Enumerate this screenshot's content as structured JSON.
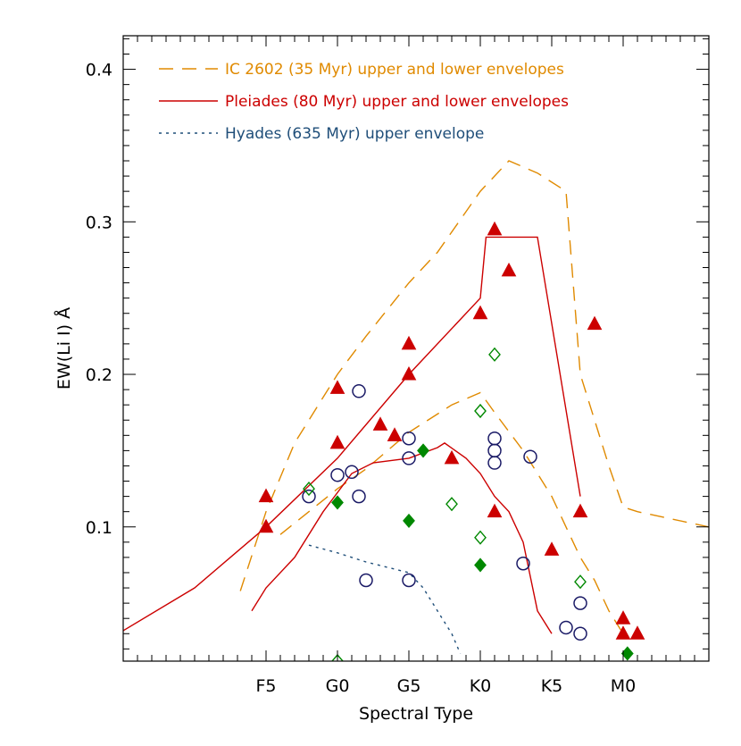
{
  "colors": {
    "ic2602": "#e08a00",
    "pleiades": "#cc0000",
    "hyades": "#1f4e79",
    "axis": "#000000",
    "circles": "#1a1a66",
    "diamonds": "#008800"
  },
  "chart_data": {
    "type": "scatter",
    "xlabel": "Spectral Type",
    "ylabel": "EW(Li I) Å",
    "xlim": [
      -5,
      36
    ],
    "ylim": [
      0.012,
      0.422
    ],
    "x_ticks": [
      {
        "value": 5,
        "label": "F5"
      },
      {
        "value": 10,
        "label": "G0"
      },
      {
        "value": 15,
        "label": "G5"
      },
      {
        "value": 20,
        "label": "K0"
      },
      {
        "value": 25,
        "label": "K5"
      },
      {
        "value": 30,
        "label": "M0"
      }
    ],
    "y_ticks": [
      {
        "value": 0.1,
        "label": "0.1"
      },
      {
        "value": 0.2,
        "label": "0.2"
      },
      {
        "value": 0.3,
        "label": "0.3"
      },
      {
        "value": 0.4,
        "label": "0.4"
      }
    ],
    "grid": false,
    "legend_position": "top-left",
    "legend": [
      {
        "label": "IC 2602 (35 Myr) upper and lower envelopes",
        "style": "dashed",
        "color": "#e08a00"
      },
      {
        "label": "Pleiades (80 Myr) upper and lower envelopes",
        "style": "solid",
        "color": "#cc0000"
      },
      {
        "label": "Hyades (635 Myr) upper envelope",
        "style": "dotted",
        "color": "#1f4e79"
      }
    ],
    "lines": [
      {
        "id": "ic2602-upper",
        "style": "dashed",
        "color": "#e08a00",
        "points": [
          [
            3.2,
            0.058
          ],
          [
            5,
            0.11
          ],
          [
            7,
            0.155
          ],
          [
            10,
            0.2
          ],
          [
            12,
            0.225
          ],
          [
            15,
            0.26
          ],
          [
            17,
            0.28
          ],
          [
            20,
            0.32
          ],
          [
            22,
            0.34
          ],
          [
            24,
            0.332
          ],
          [
            26,
            0.32
          ],
          [
            27,
            0.2
          ],
          [
            28,
            0.17
          ],
          [
            29,
            0.14
          ],
          [
            30,
            0.113
          ],
          [
            31,
            0.11
          ],
          [
            36,
            0.1
          ]
        ]
      },
      {
        "id": "ic2602-lower",
        "style": "dashed",
        "color": "#e08a00",
        "points": [
          [
            6,
            0.095
          ],
          [
            8,
            0.11
          ],
          [
            10,
            0.125
          ],
          [
            12,
            0.138
          ],
          [
            15,
            0.162
          ],
          [
            18,
            0.18
          ],
          [
            20,
            0.188
          ],
          [
            21,
            0.175
          ],
          [
            23,
            0.15
          ],
          [
            25,
            0.12
          ],
          [
            26,
            0.1
          ],
          [
            27,
            0.08
          ],
          [
            28,
            0.065
          ],
          [
            29,
            0.045
          ],
          [
            30,
            0.03
          ]
        ]
      },
      {
        "id": "pleiades-upper",
        "style": "solid",
        "color": "#cc0000",
        "points": [
          [
            -5,
            0.032
          ],
          [
            0,
            0.06
          ],
          [
            5,
            0.1
          ],
          [
            10,
            0.145
          ],
          [
            15,
            0.2
          ],
          [
            20,
            0.25
          ],
          [
            20.4,
            0.29
          ],
          [
            24,
            0.29
          ],
          [
            27,
            0.12
          ]
        ]
      },
      {
        "id": "pleiades-lower",
        "style": "solid",
        "color": "#cc0000",
        "points": [
          [
            4,
            0.045
          ],
          [
            5,
            0.06
          ],
          [
            7,
            0.08
          ],
          [
            9,
            0.11
          ],
          [
            11,
            0.135
          ],
          [
            12.5,
            0.142
          ],
          [
            15,
            0.145
          ],
          [
            17,
            0.152
          ],
          [
            17.5,
            0.155
          ],
          [
            19,
            0.145
          ],
          [
            20,
            0.135
          ],
          [
            21,
            0.12
          ],
          [
            22,
            0.11
          ],
          [
            23,
            0.09
          ],
          [
            24,
            0.045
          ],
          [
            25,
            0.03
          ]
        ]
      },
      {
        "id": "hyades-upper",
        "style": "dotted",
        "color": "#1f4e79",
        "points": [
          [
            8,
            0.088
          ],
          [
            10,
            0.083
          ],
          [
            12,
            0.077
          ],
          [
            15,
            0.07
          ],
          [
            16,
            0.06
          ],
          [
            17,
            0.045
          ],
          [
            18,
            0.03
          ],
          [
            18.6,
            0.017
          ]
        ]
      }
    ],
    "series": [
      {
        "marker": "filled-triangle",
        "color": "#cc0000",
        "points": [
          [
            5,
            0.12
          ],
          [
            5,
            0.1
          ],
          [
            10,
            0.191
          ],
          [
            10,
            0.155
          ],
          [
            15,
            0.22
          ],
          [
            15,
            0.2
          ],
          [
            13,
            0.167
          ],
          [
            14,
            0.16
          ],
          [
            18,
            0.145
          ],
          [
            20,
            0.24
          ],
          [
            21,
            0.295
          ],
          [
            22,
            0.268
          ],
          [
            21,
            0.11
          ],
          [
            25,
            0.085
          ],
          [
            27,
            0.11
          ],
          [
            28,
            0.233
          ],
          [
            30,
            0.04
          ],
          [
            30,
            0.03
          ],
          [
            31,
            0.03
          ]
        ]
      },
      {
        "marker": "open-circle",
        "color": "#1a1a66",
        "points": [
          [
            8,
            0.12
          ],
          [
            10,
            0.134
          ],
          [
            11,
            0.136
          ],
          [
            11.5,
            0.12
          ],
          [
            11.5,
            0.189
          ],
          [
            12,
            0.065
          ],
          [
            15,
            0.158
          ],
          [
            15,
            0.145
          ],
          [
            15,
            0.065
          ],
          [
            21,
            0.158
          ],
          [
            21,
            0.15
          ],
          [
            21,
            0.142
          ],
          [
            23,
            0.076
          ],
          [
            23.5,
            0.146
          ],
          [
            26,
            0.034
          ],
          [
            27,
            0.05
          ],
          [
            27,
            0.03
          ]
        ]
      },
      {
        "marker": "filled-diamond",
        "color": "#008800",
        "points": [
          [
            10,
            0.116
          ],
          [
            15,
            0.104
          ],
          [
            16,
            0.15
          ],
          [
            20,
            0.075
          ],
          [
            30.3,
            0.017
          ]
        ]
      },
      {
        "marker": "open-diamond",
        "color": "#008800",
        "points": [
          [
            8,
            0.125
          ],
          [
            10,
            0.012
          ],
          [
            18,
            0.115
          ],
          [
            20,
            0.176
          ],
          [
            20,
            0.093
          ],
          [
            21,
            0.213
          ],
          [
            27,
            0.064
          ]
        ]
      }
    ]
  }
}
